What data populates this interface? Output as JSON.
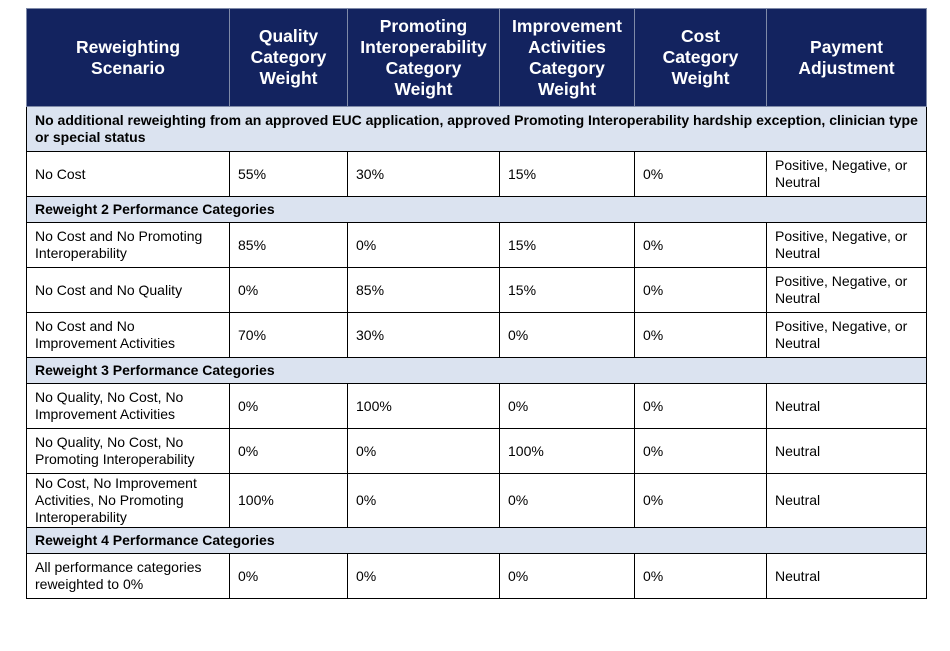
{
  "headers": [
    "Reweighting\nScenario",
    "Quality\nCategory\nWeight",
    "Promoting\nInteroperability\nCategory\nWeight",
    "Improvement\nActivities\nCategory\nWeight",
    "Cost\nCategory\nWeight",
    "Payment\nAdjustment"
  ],
  "sections": [
    {
      "title": "No additional reweighting from an approved EUC application, approved Promoting Interoperability hardship exception, clinician type or special status",
      "rows": [
        [
          "No Cost",
          "55%",
          "30%",
          "15%",
          "0%",
          "Positive, Negative, or\nNeutral"
        ]
      ]
    },
    {
      "title": "Reweight 2 Performance Categories",
      "rows": [
        [
          "No Cost and No Promoting\nInteroperability",
          "85%",
          "0%",
          "15%",
          "0%",
          "Positive, Negative, or\nNeutral"
        ],
        [
          "No Cost and No Quality",
          "0%",
          "85%",
          "15%",
          "0%",
          "Positive, Negative, or\nNeutral"
        ],
        [
          "No Cost and No\nImprovement Activities",
          "70%",
          "30%",
          "0%",
          "0%",
          "Positive, Negative, or\nNeutral"
        ]
      ]
    },
    {
      "title": "Reweight 3 Performance Categories",
      "rows": [
        [
          "No Quality, No Cost, No\nImprovement Activities",
          "0%",
          "100%",
          "0%",
          "0%",
          "Neutral"
        ],
        [
          "No Quality, No Cost, No\nPromoting Interoperability",
          "0%",
          "0%",
          "100%",
          "0%",
          "Neutral"
        ],
        [
          "No Cost, No Improvement\nActivities, No Promoting\nInteroperability",
          "100%",
          "0%",
          "0%",
          "0%",
          "Neutral"
        ]
      ]
    },
    {
      "title": "Reweight 4 Performance Categories",
      "rows": [
        [
          "All performance categories\nreweighted to 0%",
          "0%",
          "0%",
          "0%",
          "0%",
          "Neutral"
        ]
      ]
    }
  ]
}
